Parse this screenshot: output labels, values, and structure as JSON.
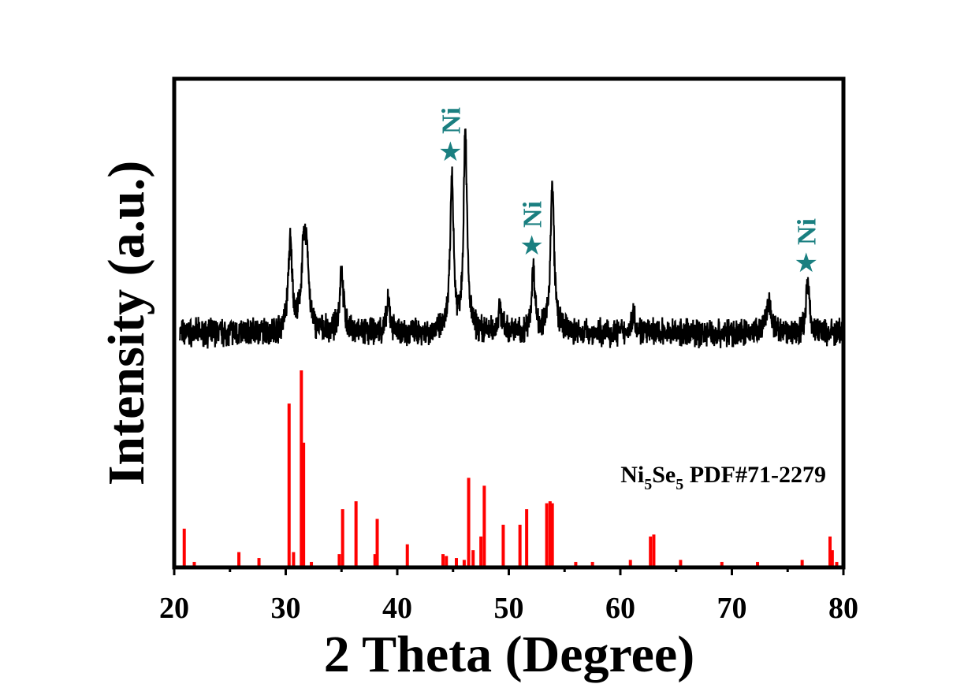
{
  "chart_data": {
    "type": "line",
    "xlabel": "2 Theta (Degree)",
    "ylabel": "Intensity (a.u.)",
    "xlim": [
      20,
      80
    ],
    "ylim": [
      0,
      100
    ],
    "xticks": [
      "20",
      "30",
      "40",
      "50",
      "60",
      "70",
      "80"
    ],
    "yticks_shown": false,
    "grid": false,
    "colors": {
      "measured": "#000000",
      "reference": "#ff0000",
      "annotation": "#1a7f80"
    },
    "series": [
      {
        "kind": "measured-pattern",
        "baseline": 48,
        "noise_amplitude": 2.2,
        "peaks": [
          {
            "x": 30.4,
            "height": 18,
            "width": 0.22
          },
          {
            "x": 31.6,
            "height": 15,
            "width": 0.25
          },
          {
            "x": 31.9,
            "height": 13,
            "width": 0.2
          },
          {
            "x": 35.0,
            "height": 13,
            "width": 0.2
          },
          {
            "x": 39.2,
            "height": 6,
            "width": 0.2
          },
          {
            "x": 44.9,
            "height": 32,
            "width": 0.18
          },
          {
            "x": 46.1,
            "height": 42,
            "width": 0.18
          },
          {
            "x": 49.2,
            "height": 5,
            "width": 0.2
          },
          {
            "x": 52.2,
            "height": 13,
            "width": 0.18
          },
          {
            "x": 53.9,
            "height": 30,
            "width": 0.2
          },
          {
            "x": 61.2,
            "height": 4,
            "width": 0.2
          },
          {
            "x": 73.3,
            "height": 6,
            "width": 0.25
          },
          {
            "x": 76.8,
            "height": 10,
            "width": 0.2
          }
        ]
      },
      {
        "kind": "reference-sticks",
        "name": "Ni5Se5 PDF#71-2279",
        "x": [
          20.9,
          21.8,
          25.8,
          27.6,
          30.3,
          30.7,
          31.4,
          31.6,
          32.3,
          34.8,
          35.1,
          36.3,
          38.0,
          38.2,
          40.9,
          44.1,
          44.4,
          45.3,
          46.0,
          46.4,
          46.8,
          47.5,
          47.8,
          49.5,
          51.0,
          51.6,
          53.4,
          53.7,
          53.9,
          56.0,
          57.5,
          60.9,
          62.7,
          63.0,
          65.4,
          69.1,
          72.3,
          76.3,
          78.8,
          79.0,
          79.4
        ],
        "values": [
          19,
          2,
          7,
          4,
          83,
          7,
          100,
          63,
          2,
          6,
          29,
          33,
          6,
          24,
          11,
          6,
          5,
          4,
          3,
          45,
          8,
          15,
          41,
          21,
          21,
          29,
          32,
          33,
          32,
          2,
          2,
          3,
          15,
          16,
          3,
          2,
          2,
          3,
          15,
          8,
          2
        ]
      }
    ],
    "annotations": [
      {
        "text": "Ni",
        "x": 44.9,
        "symbol": "star"
      },
      {
        "text": "Ni",
        "x": 52.2,
        "symbol": "star"
      },
      {
        "text": "Ni",
        "x": 76.8,
        "symbol": "star"
      }
    ],
    "reference_label": {
      "main": "Ni",
      "sub1": "5",
      "mid": "Se",
      "sub2": "5",
      "tail": " PDF#71-2279"
    }
  }
}
